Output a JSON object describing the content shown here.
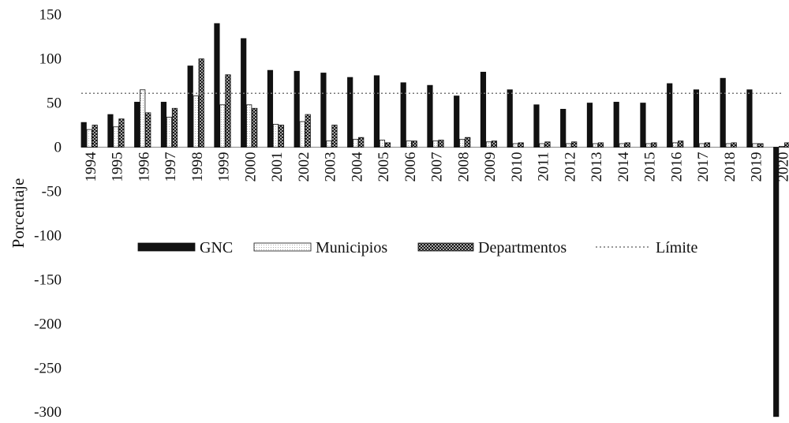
{
  "chart_data": {
    "type": "bar",
    "title": "",
    "xlabel": "",
    "ylabel": "Porcentaje",
    "ylim": [
      -300,
      150
    ],
    "yticks": [
      150,
      100,
      50,
      0,
      -50,
      -100,
      -150,
      -200,
      -250,
      -300
    ],
    "categories": [
      "1994",
      "1995",
      "1996",
      "1997",
      "1998",
      "1999",
      "2000",
      "2001",
      "2002",
      "2003",
      "2004",
      "2005",
      "2006",
      "2007",
      "2008",
      "2009",
      "2010",
      "2011",
      "2012",
      "2013",
      "2014",
      "2015",
      "2016",
      "2017",
      "2018",
      "2019",
      "2020"
    ],
    "series": [
      {
        "name": "GNC",
        "pattern": "solid",
        "color": "#111111",
        "values": [
          28,
          37,
          51,
          51,
          92,
          140,
          123,
          87,
          86,
          84,
          79,
          81,
          73,
          70,
          58,
          85,
          65,
          48,
          43,
          50,
          51,
          50,
          72,
          65,
          78,
          65,
          -305
        ]
      },
      {
        "name": "Municipios",
        "pattern": "dots",
        "color": "#ffffff",
        "values": [
          20,
          23,
          65,
          34,
          58,
          48,
          48,
          26,
          29,
          7,
          9,
          8,
          7,
          7,
          9,
          6,
          4,
          4,
          4,
          4,
          4,
          4,
          5,
          4,
          4,
          4,
          1
        ]
      },
      {
        "name": "Departmentos",
        "pattern": "cross",
        "color": "#333333",
        "values": [
          25,
          32,
          39,
          44,
          100,
          82,
          44,
          25,
          37,
          25,
          11,
          5,
          7,
          8,
          11,
          7,
          5,
          6,
          6,
          5,
          5,
          5,
          7,
          5,
          5,
          4,
          5
        ]
      }
    ],
    "reference_line": {
      "name": "Límite",
      "value": 61,
      "style": "dotted",
      "color": "#777777"
    },
    "legend_position": "middle",
    "grid": false
  }
}
